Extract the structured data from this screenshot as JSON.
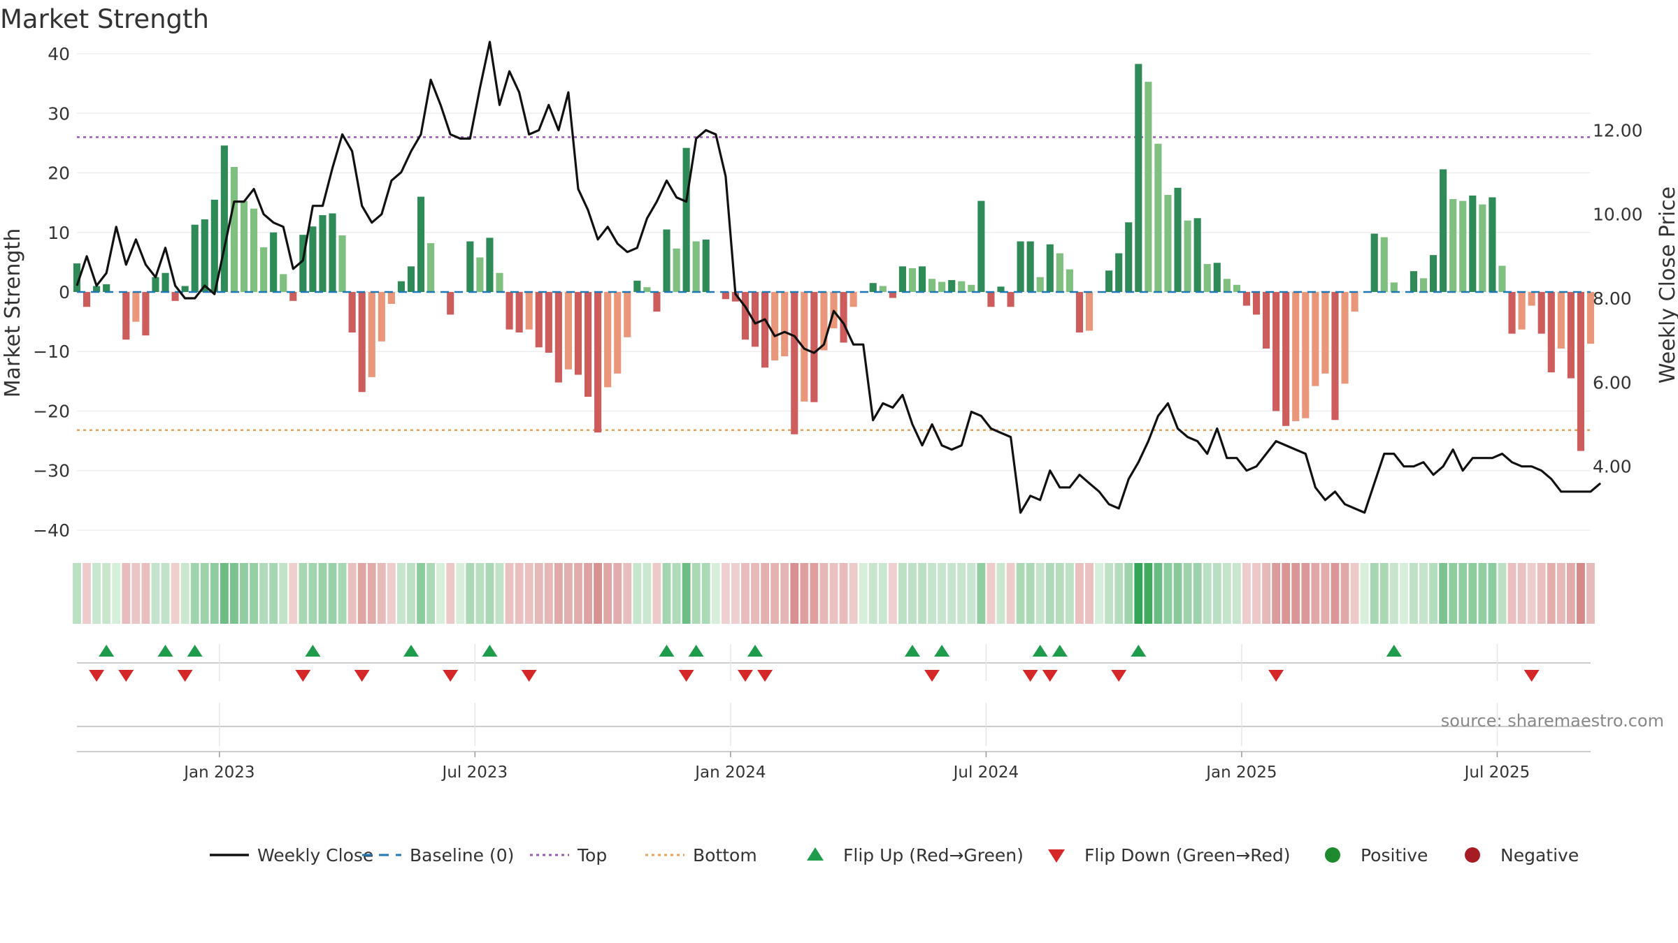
{
  "chart_data": {
    "type": "bar",
    "title": "Market Strength",
    "ylabel_left": "Market Strength",
    "ylabel_right": "Weekly Close Price",
    "ylim_left": [
      -42,
      42
    ],
    "ylim_right": [
      2.2,
      14.1
    ],
    "yticks_left": [
      40,
      30,
      20,
      10,
      0,
      -10,
      -20,
      -30,
      -40
    ],
    "yticks_left_labels": [
      "40",
      "30",
      "20",
      "10",
      "0",
      "−10",
      "−20",
      "−30",
      "−40"
    ],
    "yticks_right": [
      12,
      10,
      8,
      6,
      4
    ],
    "yticks_right_labels": [
      "12.00",
      "10.00",
      "8.00",
      "6.00",
      "4.00"
    ],
    "x_ticks": [
      "Jan 2023",
      "Jul 2023",
      "Jan 2024",
      "Jul 2024",
      "Jan 2025",
      "Jul 2025"
    ],
    "x_tick_positions": [
      14.5,
      40.5,
      66.5,
      92.5,
      118.5,
      144.5
    ],
    "bars": [
      4.8,
      -2.5,
      1.0,
      1.3,
      0,
      -8.0,
      -5.0,
      -7.3,
      2.5,
      3.2,
      -1.5,
      1.0,
      11.3,
      12.2,
      15.5,
      24.6,
      21.0,
      15.3,
      14.0,
      7.5,
      10.0,
      3.0,
      -1.5,
      9.6,
      11.0,
      12.9,
      13.2,
      9.5,
      -6.8,
      -16.8,
      -14.3,
      -8.3,
      -2.0,
      1.8,
      4.3,
      16.0,
      8.2,
      0,
      -3.8,
      0,
      8.5,
      5.8,
      9.1,
      3.2,
      -6.3,
      -6.8,
      -6.3,
      -9.3,
      -10.2,
      -15.2,
      -13.0,
      -13.9,
      -17.6,
      -23.6,
      -16.0,
      -13.7,
      -7.6,
      1.9,
      0.8,
      -3.3,
      10.5,
      7.3,
      24.2,
      8.5,
      8.8,
      0,
      -1.2,
      -1.6,
      -8.0,
      -9.2,
      -12.7,
      -11.5,
      -10.8,
      -23.9,
      -18.4,
      -18.5,
      -9.8,
      -6.1,
      -8.5,
      -2.5,
      0,
      1.5,
      1.0,
      -1.0,
      4.3,
      4.0,
      4.3,
      2.2,
      1.7,
      2.0,
      1.8,
      1.2,
      15.3,
      -2.5,
      0.9,
      -2.5,
      8.5,
      8.5,
      2.5,
      8.0,
      6.5,
      3.8,
      -6.8,
      -6.5,
      0,
      3.6,
      6.5,
      11.7,
      38.3,
      35.3,
      24.9,
      16.3,
      17.5,
      12.0,
      12.4,
      4.7,
      4.9,
      2.2,
      1.2,
      -2.3,
      -3.8,
      -9.5,
      -20.0,
      -22.5,
      -21.7,
      -21.2,
      -15.8,
      -13.7,
      -21.5,
      -15.4,
      -3.3,
      0,
      9.8,
      9.2,
      1.6,
      0,
      3.5,
      2.3,
      6.2,
      20.6,
      15.6,
      15.3,
      16.2,
      14.7,
      15.9,
      4.4,
      -7.0,
      -6.3,
      -2.3,
      -7.0,
      -13.5,
      -9.5,
      -14.5,
      -26.7,
      -8.7
    ],
    "close": [
      8.3,
      9.0,
      8.3,
      8.6,
      9.7,
      8.8,
      9.4,
      8.8,
      8.5,
      9.2,
      8.3,
      8.0,
      8.0,
      8.3,
      8.1,
      9.2,
      10.3,
      10.3,
      10.6,
      10.0,
      9.8,
      9.7,
      8.7,
      8.9,
      10.2,
      10.2,
      11.1,
      11.9,
      11.5,
      10.2,
      9.8,
      10.0,
      10.8,
      11.0,
      11.5,
      11.9,
      13.2,
      12.6,
      11.9,
      11.8,
      11.8,
      13.0,
      14.1,
      12.6,
      13.4,
      12.9,
      11.9,
      12.0,
      12.6,
      12.0,
      12.9,
      10.6,
      10.1,
      9.4,
      9.7,
      9.3,
      9.1,
      9.2,
      9.9,
      10.3,
      10.8,
      10.4,
      10.3,
      11.8,
      12.0,
      11.9,
      10.9,
      8.1,
      7.8,
      7.4,
      7.5,
      7.1,
      7.2,
      7.1,
      6.8,
      6.7,
      6.9,
      7.7,
      7.4,
      6.9,
      6.9,
      5.1,
      5.5,
      5.4,
      5.7,
      5.0,
      4.5,
      5.0,
      4.5,
      4.4,
      4.5,
      5.3,
      5.2,
      4.9,
      4.8,
      4.7,
      2.9,
      3.3,
      3.2,
      3.9,
      3.5,
      3.5,
      3.8,
      3.6,
      3.4,
      3.1,
      3.0,
      3.7,
      4.1,
      4.6,
      5.2,
      5.5,
      4.9,
      4.7,
      4.6,
      4.3,
      4.9,
      4.2,
      4.2,
      3.9,
      4.0,
      4.3,
      4.6,
      4.5,
      4.4,
      4.3,
      3.5,
      3.2,
      3.4,
      3.1,
      3.0,
      2.9,
      3.6,
      4.3,
      4.3,
      4.0,
      4.0,
      4.1,
      3.8,
      4.0,
      4.4,
      3.9,
      4.2,
      4.2,
      4.2,
      4.3,
      4.1,
      4.0,
      4.0,
      3.9,
      3.7,
      3.4,
      3.4,
      3.4,
      3.4,
      3.6
    ],
    "top_line": 26,
    "bottom_line": -23.2,
    "flip_up": [
      3,
      9,
      12,
      24,
      34,
      42,
      60,
      63,
      69,
      85,
      88,
      98,
      100,
      108,
      134
    ],
    "flip_down": [
      2,
      5,
      11,
      23,
      29,
      38,
      46,
      62,
      68,
      70,
      87,
      97,
      99,
      106,
      122,
      148
    ],
    "legend": [
      {
        "label": "Weekly Close",
        "kind": "line",
        "color": "#111111"
      },
      {
        "label": "Baseline (0)",
        "kind": "dash",
        "color": "#1f77b4"
      },
      {
        "label": "Top",
        "kind": "dot",
        "color": "#9b59b6"
      },
      {
        "label": "Bottom",
        "kind": "dot",
        "color": "#e6a15a"
      },
      {
        "label": "Flip Up (Red→Green)",
        "kind": "up",
        "color": "#1e9b4b"
      },
      {
        "label": "Flip Down (Green→Red)",
        "kind": "down",
        "color": "#d62728"
      },
      {
        "label": "Positive",
        "kind": "circle",
        "color": "#1e8a2e"
      },
      {
        "label": "Negative",
        "kind": "circle",
        "color": "#a51c22"
      }
    ],
    "colors": {
      "pos_dark": "#2e8b57",
      "pos_light": "#7fbf7f",
      "neg_dark": "#cd5c5c",
      "neg_light": "#e9967a",
      "close_line": "#111111",
      "baseline": "#1f77b4",
      "grid": "#eeeeee"
    }
  },
  "source": "source: sharemaestro.com"
}
